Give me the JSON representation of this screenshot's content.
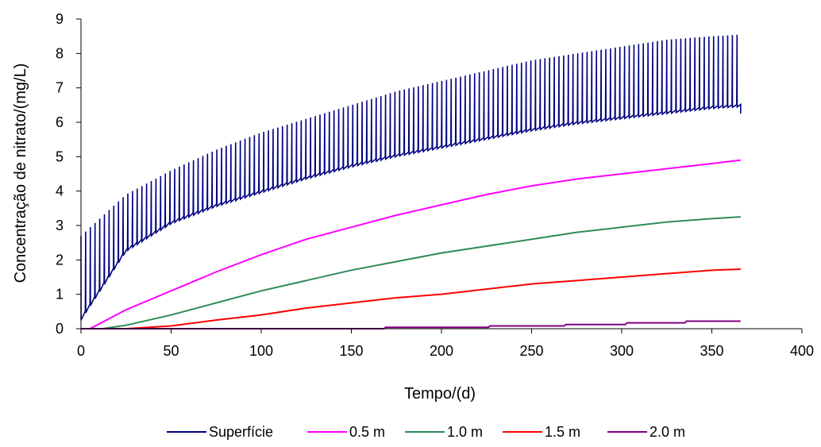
{
  "chart_data": {
    "type": "line",
    "title": "",
    "xlabel": "Tempo/(d)",
    "ylabel": "Concentração de nitrato/(mg/L)",
    "xlim": [
      0,
      400
    ],
    "ylim": [
      0,
      9
    ],
    "xticks": [
      0,
      50,
      100,
      150,
      200,
      250,
      300,
      350,
      400
    ],
    "yticks": [
      0,
      1,
      2,
      3,
      4,
      5,
      6,
      7,
      8,
      9
    ],
    "grid": false,
    "legend_position": "bottom",
    "series": [
      {
        "name": "Superfície",
        "color": "#000080",
        "style": "oscillating band",
        "x": [
          0,
          25,
          50,
          75,
          100,
          125,
          150,
          175,
          200,
          225,
          250,
          275,
          300,
          325,
          350,
          366
        ],
        "upper": [
          2.7,
          3.9,
          4.6,
          5.2,
          5.7,
          6.1,
          6.5,
          6.9,
          7.2,
          7.5,
          7.8,
          8.0,
          8.2,
          8.4,
          8.5,
          8.55
        ],
        "lower": [
          0.2,
          2.2,
          3.0,
          3.5,
          3.9,
          4.3,
          4.65,
          4.95,
          5.2,
          5.45,
          5.7,
          5.9,
          6.05,
          6.2,
          6.35,
          6.4
        ],
        "end_value": 6.25
      },
      {
        "name": "0.5 m",
        "color": "#FF00FF",
        "x": [
          0,
          5,
          25,
          50,
          75,
          100,
          125,
          150,
          175,
          200,
          225,
          250,
          275,
          300,
          325,
          350,
          366
        ],
        "values": [
          0,
          0,
          0.55,
          1.1,
          1.65,
          2.15,
          2.6,
          2.95,
          3.3,
          3.6,
          3.9,
          4.15,
          4.35,
          4.5,
          4.65,
          4.8,
          4.9
        ]
      },
      {
        "name": "1.0 m",
        "color": "#2E8B57",
        "x": [
          0,
          12,
          25,
          50,
          75,
          100,
          125,
          150,
          175,
          200,
          225,
          250,
          275,
          300,
          325,
          350,
          366
        ],
        "values": [
          0,
          0,
          0.1,
          0.4,
          0.75,
          1.1,
          1.4,
          1.7,
          1.95,
          2.2,
          2.4,
          2.6,
          2.8,
          2.95,
          3.1,
          3.2,
          3.25
        ]
      },
      {
        "name": "1.5 m",
        "color": "#FF0000",
        "x": [
          0,
          25,
          50,
          75,
          100,
          125,
          150,
          175,
          200,
          225,
          250,
          275,
          300,
          325,
          350,
          366
        ],
        "values": [
          0,
          0,
          0.08,
          0.25,
          0.4,
          0.6,
          0.75,
          0.9,
          1.0,
          1.15,
          1.3,
          1.4,
          1.5,
          1.6,
          1.7,
          1.73
        ]
      },
      {
        "name": "2.0 m",
        "color": "#800080",
        "x": [
          0,
          168,
          169,
          226,
          227,
          268,
          269,
          302,
          303,
          335,
          336,
          366
        ],
        "values": [
          0,
          0,
          0.04,
          0.04,
          0.08,
          0.08,
          0.12,
          0.12,
          0.17,
          0.17,
          0.22,
          0.22
        ]
      }
    ]
  }
}
